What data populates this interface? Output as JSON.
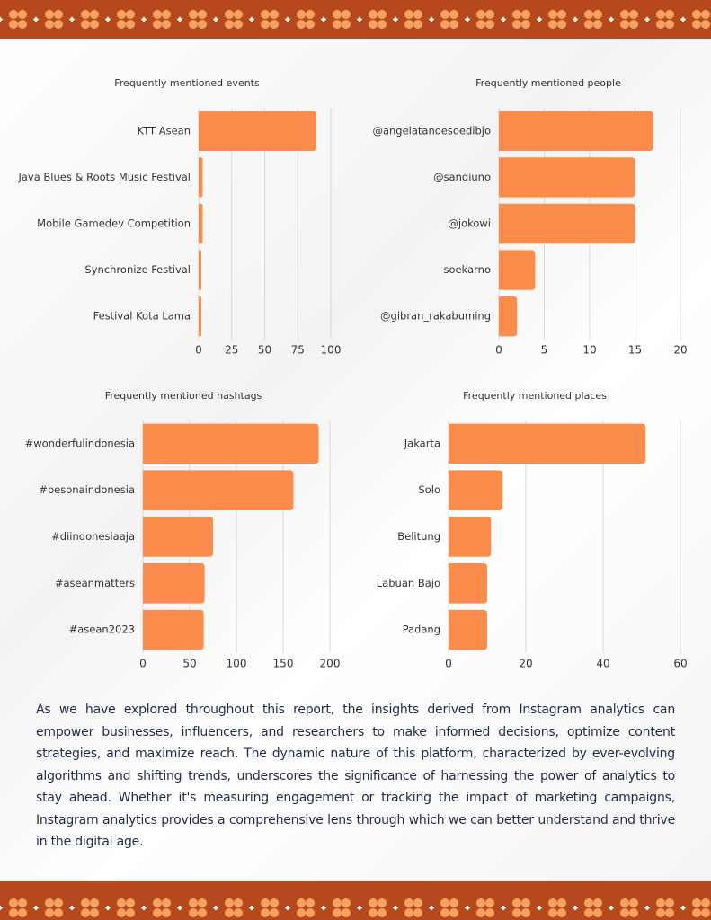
{
  "chart_data": [
    {
      "type": "hbar",
      "title": "Frequently mentioned events",
      "categories": [
        "KTT Asean",
        "Java Blues & Roots Music Festival",
        "Mobile Gamedev Competition",
        "Synchronize Festival",
        "Festival Kota Lama"
      ],
      "values": [
        89,
        3,
        3,
        2,
        2
      ],
      "color": "#fb8c4b",
      "xlim": [
        0,
        100
      ],
      "xticks": [
        0,
        25,
        50,
        75,
        100
      ],
      "grid": true
    },
    {
      "type": "hbar",
      "title": "Frequently mentioned people",
      "categories": [
        "@angelatanoesoedibjo",
        "@sandiuno",
        "@jokowi",
        "soekarno",
        "@gibran_rakabuming"
      ],
      "values": [
        17,
        15,
        15,
        4,
        2
      ],
      "color": "#fb8c4b",
      "xlim": [
        0,
        20
      ],
      "xticks": [
        0,
        5,
        10,
        15,
        20
      ],
      "grid": true
    },
    {
      "type": "hbar",
      "title": "Frequently mentioned hashtags",
      "categories": [
        "#wonderfulindonesia",
        "#pesonaindonesia",
        "#diindonesiaaja",
        "#aseanmatters",
        "#asean2023"
      ],
      "values": [
        188,
        161,
        75,
        66,
        65
      ],
      "color": "#fb8c4b",
      "xlim": [
        0,
        200
      ],
      "xticks": [
        0,
        50,
        100,
        150,
        200
      ],
      "grid": true
    },
    {
      "type": "hbar",
      "title": "Frequently mentioned places",
      "categories": [
        "Jakarta",
        "Solo",
        "Belitung",
        "Labuan Bajo",
        "Padang"
      ],
      "values": [
        51,
        14,
        11,
        10,
        10
      ],
      "color": "#fb8c4b",
      "xlim": [
        0,
        60
      ],
      "xticks": [
        0,
        20,
        40,
        60
      ],
      "grid": true
    }
  ],
  "paragraph": "As we have explored throughout this report, the insights derived from Instagram analytics can empower businesses, influencers, and researchers to make informed decisions, optimize content strategies, and maximize reach. The dynamic nature of this platform, characterized by ever-evolving algorithms and shifting trends, underscores the significance of harnessing the power of analytics to stay ahead. Whether it's measuring engagement or tracking the impact of marketing campaigns, Instagram analytics provides a comprehensive lens through which we can better understand and thrive in the digital age."
}
